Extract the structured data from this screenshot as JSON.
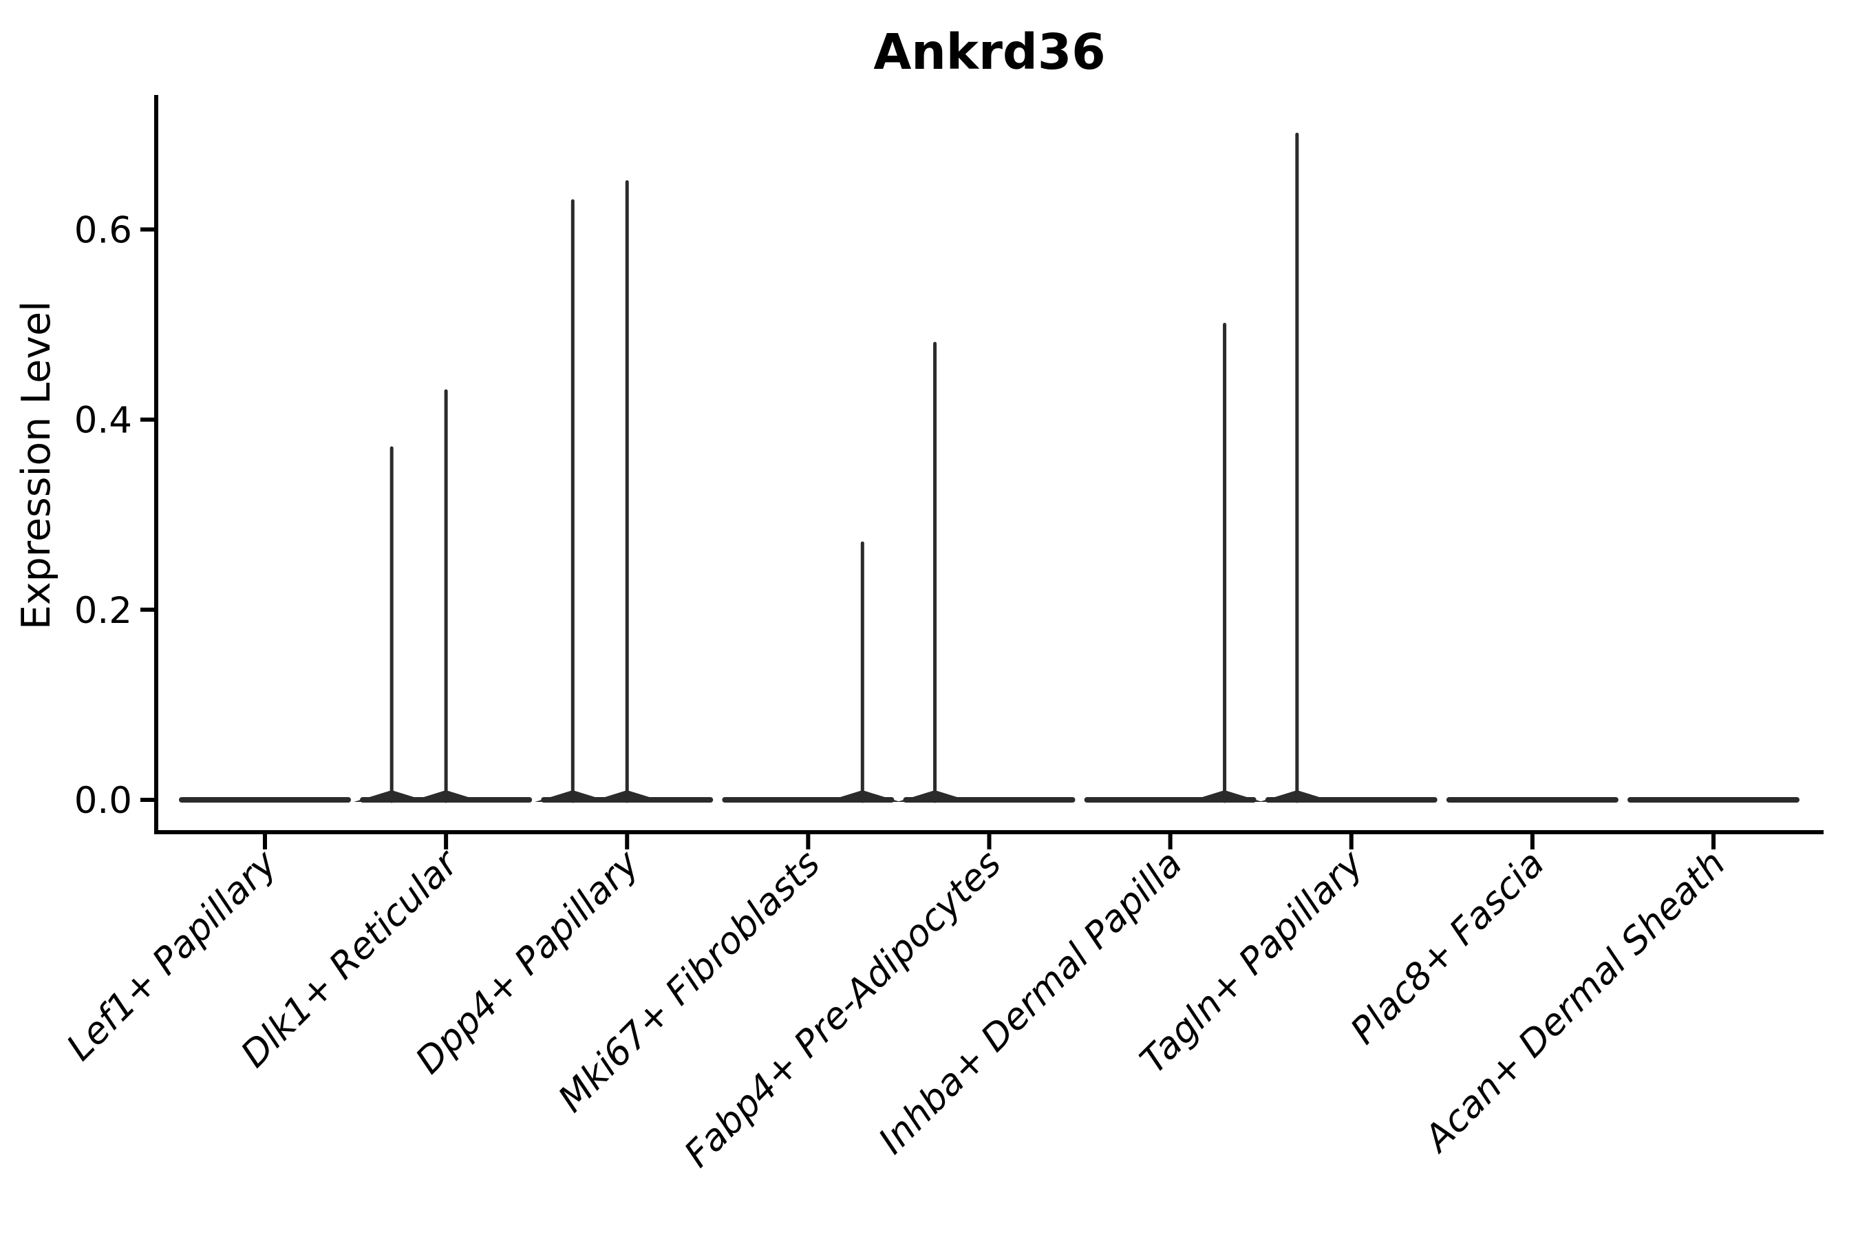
{
  "figure": {
    "title": "Ankrd36"
  },
  "chart_data": {
    "type": "violin",
    "title": "Ankrd36",
    "xlabel": "",
    "ylabel": "Expression Level",
    "ylim": [
      0,
      0.74
    ],
    "yticks": [
      0.0,
      0.2,
      0.4,
      0.6
    ],
    "ytick_labels": [
      "0.0",
      "0.2",
      "0.4",
      "0.6"
    ],
    "grid": false,
    "legend": "none",
    "categories": [
      "Lef1+ Papillary",
      "Dlk1+ Reticular",
      "Dpp4+ Papillary",
      "Mki67+ Fibroblasts",
      "Fabp4+ Pre-Adipocytes",
      "Inhba+ Dermal Papilla",
      "Tagln+ Papillary",
      "Plac8+ Fascia",
      "Acan+ Dermal Sheath"
    ],
    "series": [
      {
        "category": "Lef1+ Papillary",
        "baseline": 0.0,
        "spikes": []
      },
      {
        "category": "Dlk1+ Reticular",
        "baseline": 0.0,
        "spikes": [
          {
            "x_offset_frac": -0.3,
            "value": 0.37
          },
          {
            "x_offset_frac": 0.0,
            "value": 0.43
          }
        ]
      },
      {
        "category": "Dpp4+ Papillary",
        "baseline": 0.0,
        "spikes": [
          {
            "x_offset_frac": -0.3,
            "value": 0.63
          },
          {
            "x_offset_frac": 0.0,
            "value": 0.65
          }
        ]
      },
      {
        "category": "Mki67+ Fibroblasts",
        "baseline": 0.0,
        "spikes": [
          {
            "x_offset_frac": 0.3,
            "value": 0.27
          }
        ]
      },
      {
        "category": "Fabp4+ Pre-Adipocytes",
        "baseline": 0.0,
        "spikes": [
          {
            "x_offset_frac": -0.3,
            "value": 0.48
          }
        ]
      },
      {
        "category": "Inhba+ Dermal Papilla",
        "baseline": 0.0,
        "spikes": [
          {
            "x_offset_frac": 0.3,
            "value": 0.5
          }
        ]
      },
      {
        "category": "Tagln+ Papillary",
        "baseline": 0.0,
        "spikes": [
          {
            "x_offset_frac": -0.3,
            "value": 0.7
          }
        ]
      },
      {
        "category": "Plac8+ Fascia",
        "baseline": 0.0,
        "spikes": []
      },
      {
        "category": "Acan+ Dermal Sheath",
        "baseline": 0.0,
        "spikes": []
      }
    ]
  },
  "colors": {
    "violin": "#2b2b2b",
    "axis": "#000000",
    "text": "#000000",
    "background": "#ffffff"
  }
}
